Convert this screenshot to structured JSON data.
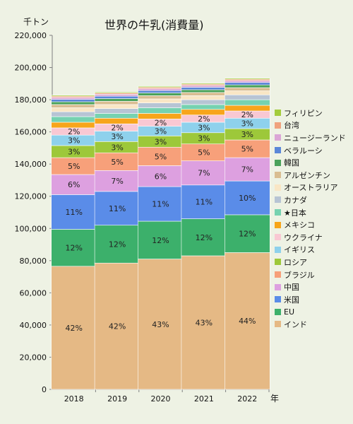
{
  "colors": {
    "background": "#eef2e4",
    "axis": "#7f7f7f",
    "grid": "#c8c8c8"
  },
  "chart_data": {
    "type": "bar",
    "stacked": true,
    "title": "世界の牛乳(消費量)",
    "ylabel": "千トン",
    "xlabel": "年",
    "ylim": [
      0,
      220000
    ],
    "yticks": [
      0,
      20000,
      40000,
      60000,
      80000,
      100000,
      120000,
      140000,
      160000,
      180000,
      200000,
      220000
    ],
    "ytick_labels": [
      "0",
      "20,000",
      "40,000",
      "60,000",
      "80,000",
      "100,000",
      "120,000",
      "140,000",
      "160,000",
      "180,000",
      "200,000",
      "220,000"
    ],
    "categories": [
      "2018",
      "2019",
      "2020",
      "2021",
      "2022"
    ],
    "legend_position": "right",
    "grid": false,
    "series": [
      {
        "name": "インド",
        "color": "#e5b985",
        "values": [
          76500,
          78500,
          81000,
          83000,
          85000
        ],
        "labels": [
          "42%",
          "42%",
          "43%",
          "43%",
          "44%"
        ]
      },
      {
        "name": "EU",
        "color": "#3cb06b",
        "values": [
          23000,
          23500,
          23500,
          23000,
          23500
        ],
        "labels": [
          "12%",
          "12%",
          "12%",
          "12%",
          "12%"
        ]
      },
      {
        "name": "米国",
        "color": "#5a8ce8",
        "values": [
          21500,
          21000,
          21500,
          21000,
          21000
        ],
        "labels": [
          "11%",
          "11%",
          "11%",
          "11%",
          "10%"
        ]
      },
      {
        "name": "中国",
        "color": "#dda0e0",
        "values": [
          12500,
          13000,
          13000,
          15000,
          14500
        ],
        "labels": [
          "6%",
          "7%",
          "6%",
          "7%",
          "7%"
        ]
      },
      {
        "name": "ブラジル",
        "color": "#f7a07a",
        "values": [
          10500,
          11000,
          11500,
          10500,
          11000
        ],
        "labels": [
          "5%",
          "5%",
          "5%",
          "5%",
          "5%"
        ]
      },
      {
        "name": "ロシア",
        "color": "#9dc83a",
        "values": [
          7500,
          7000,
          7000,
          7000,
          7000
        ],
        "labels": [
          "3%",
          "3%",
          "3%",
          "3%",
          "3%"
        ]
      },
      {
        "name": "イギリス",
        "color": "#8ed1ec",
        "values": [
          6500,
          6500,
          6000,
          6500,
          6500
        ],
        "labels": [
          "3%",
          "3%",
          "3%",
          "3%",
          "3%"
        ]
      },
      {
        "name": "ウクライナ",
        "color": "#f9c8d3",
        "values": [
          4500,
          4500,
          4500,
          4500,
          4500
        ],
        "labels": [
          "2%",
          "2%",
          "2%",
          "2%",
          "2%"
        ]
      },
      {
        "name": "メキシコ",
        "color": "#f7a51b",
        "values": [
          3500,
          3500,
          3500,
          3500,
          3500
        ],
        "labels": [
          "",
          "",
          "",
          "",
          ""
        ]
      },
      {
        "name": "★日本",
        "color": "#76d2b0",
        "values": [
          3500,
          3000,
          3500,
          3000,
          3500
        ],
        "labels": [
          "",
          "",
          "",
          "",
          ""
        ]
      },
      {
        "name": "カナダ",
        "color": "#b7c4d4",
        "values": [
          3000,
          3000,
          3000,
          3000,
          3000
        ],
        "labels": [
          "",
          "",
          "",
          "",
          ""
        ]
      },
      {
        "name": "オーストラリア",
        "color": "#f9e6c5",
        "values": [
          2500,
          2500,
          2500,
          2500,
          2500
        ],
        "labels": [
          "",
          "",
          "",
          "",
          ""
        ]
      },
      {
        "name": "アルゼンチン",
        "color": "#d9bd92",
        "values": [
          2000,
          2000,
          2000,
          2000,
          2000
        ],
        "labels": [
          "",
          "",
          "",
          "",
          ""
        ]
      },
      {
        "name": "韓国",
        "color": "#4aa25a",
        "values": [
          1700,
          1700,
          1700,
          1700,
          1700
        ],
        "labels": [
          "",
          "",
          "",
          "",
          ""
        ]
      },
      {
        "name": "ベラルーシ",
        "color": "#5a87d8",
        "values": [
          1500,
          1500,
          1500,
          1500,
          1500
        ],
        "labels": [
          "",
          "",
          "",
          "",
          ""
        ]
      },
      {
        "name": "ニュージーランド",
        "color": "#dba6d6",
        "values": [
          1200,
          1200,
          1200,
          1200,
          1200
        ],
        "labels": [
          "",
          "",
          "",
          "",
          ""
        ]
      },
      {
        "name": "台湾",
        "color": "#f0a27e",
        "values": [
          800,
          800,
          800,
          800,
          800
        ],
        "labels": [
          "",
          "",
          "",
          "",
          ""
        ]
      },
      {
        "name": "フィリピン",
        "color": "#a3cc3c",
        "values": [
          600,
          600,
          600,
          600,
          600
        ],
        "labels": [
          "",
          "",
          "",
          "",
          ""
        ]
      }
    ]
  }
}
